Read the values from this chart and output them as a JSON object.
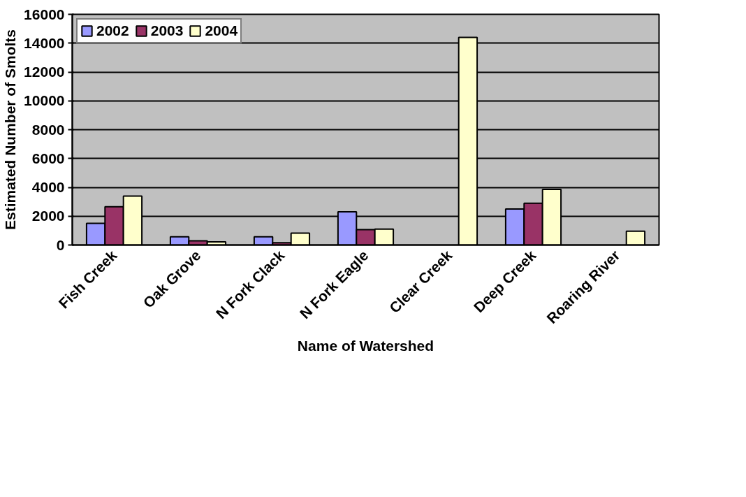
{
  "chart_data": {
    "type": "bar",
    "xlabel": "Name of Watershed",
    "ylabel": "Estimated Number of Smolts",
    "categories": [
      "Fish Creek",
      "Oak Grove",
      "N Fork Clack",
      "N Fork Eagle",
      "Clear Creek",
      "Deep Creek",
      "Roaring River"
    ],
    "series": [
      {
        "name": "2002",
        "color": "#9999ff",
        "values": [
          1500,
          570,
          570,
          2300,
          null,
          2500,
          null
        ]
      },
      {
        "name": "2003",
        "color": "#993366",
        "values": [
          2650,
          290,
          160,
          1070,
          null,
          2900,
          null
        ]
      },
      {
        "name": "2004",
        "color": "#ffffcc",
        "values": [
          3400,
          220,
          830,
          1100,
          14400,
          3850,
          960
        ]
      }
    ],
    "ylim": [
      0,
      16000
    ],
    "yticks": [
      0,
      2000,
      4000,
      6000,
      8000,
      10000,
      12000,
      14000,
      16000
    ],
    "grid": "y",
    "legend": "top left"
  }
}
